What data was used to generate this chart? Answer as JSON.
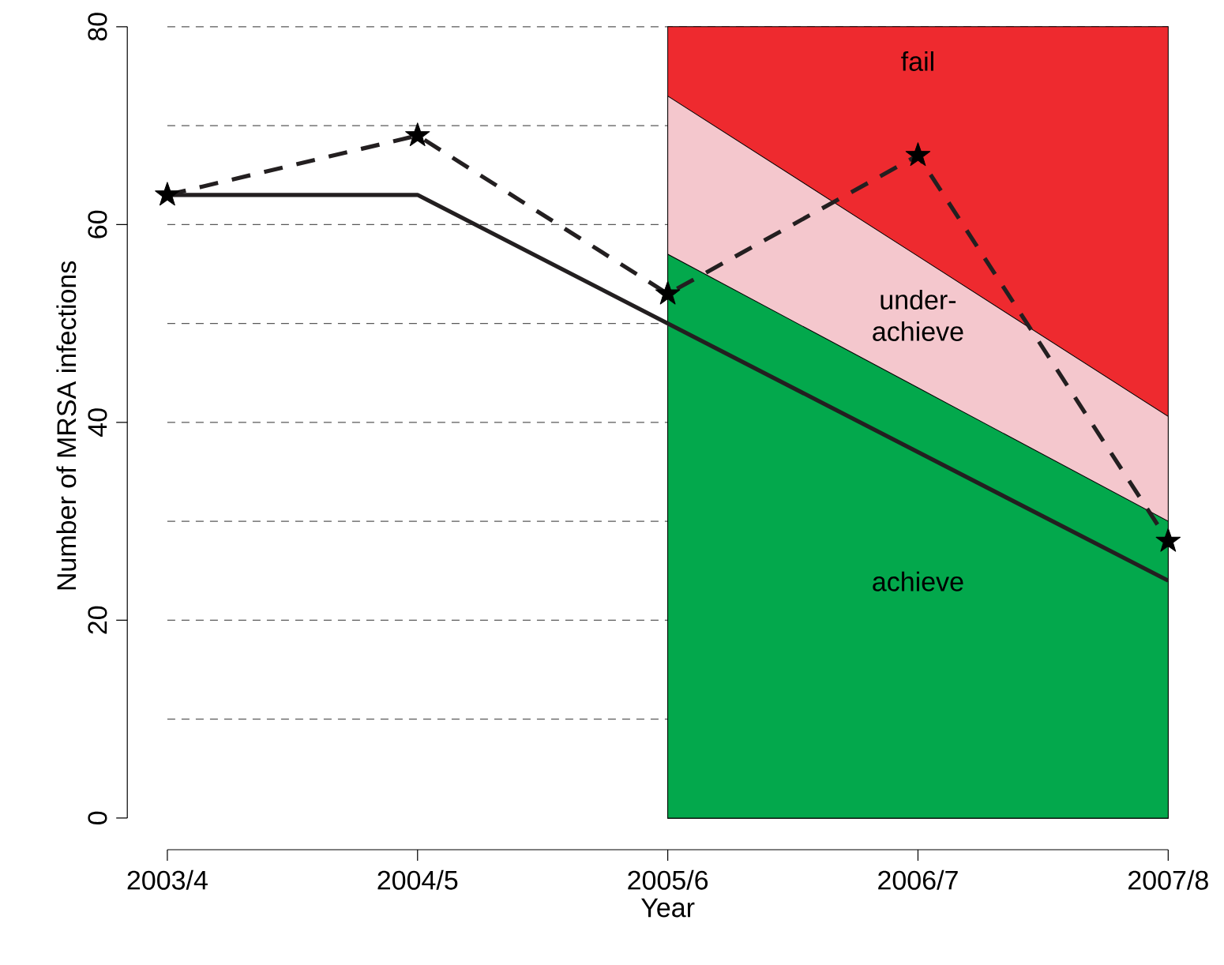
{
  "chart_data": {
    "type": "line",
    "xlabel": "Year",
    "ylabel": "Number of MRSA infections",
    "categories": [
      "2003/4",
      "2004/5",
      "2005/6",
      "2006/7",
      "2007/8"
    ],
    "ylim": [
      0,
      80
    ],
    "yticks": [
      0,
      {
        "value": 10,
        "label": null
      },
      20,
      {
        "value": 30,
        "label": null
      },
      40,
      {
        "value": 50,
        "label": null
      },
      60,
      {
        "value": 70,
        "label": null
      },
      80
    ],
    "grid": "y",
    "series": [
      {
        "name": "fail",
        "type": "area",
        "color": "#ee2a2f",
        "values": [
          null,
          null,
          80,
          80,
          80
        ]
      },
      {
        "name": "under-achieve",
        "type": "area",
        "color": "#f4c7cd",
        "values": [
          null,
          null,
          73,
          56.8,
          40.6
        ]
      },
      {
        "name": "achieve",
        "type": "area",
        "color": "#03a84c",
        "values": [
          null,
          null,
          57,
          43.5,
          30
        ]
      },
      {
        "color": "#231f20",
        "line_style": "solid",
        "marker": "none",
        "values": [
          63,
          63,
          50,
          37,
          24
        ]
      },
      {
        "color": "#231f20",
        "line_style": "dashed",
        "marker": "star",
        "values": [
          63,
          69,
          53,
          67,
          28
        ]
      }
    ]
  }
}
